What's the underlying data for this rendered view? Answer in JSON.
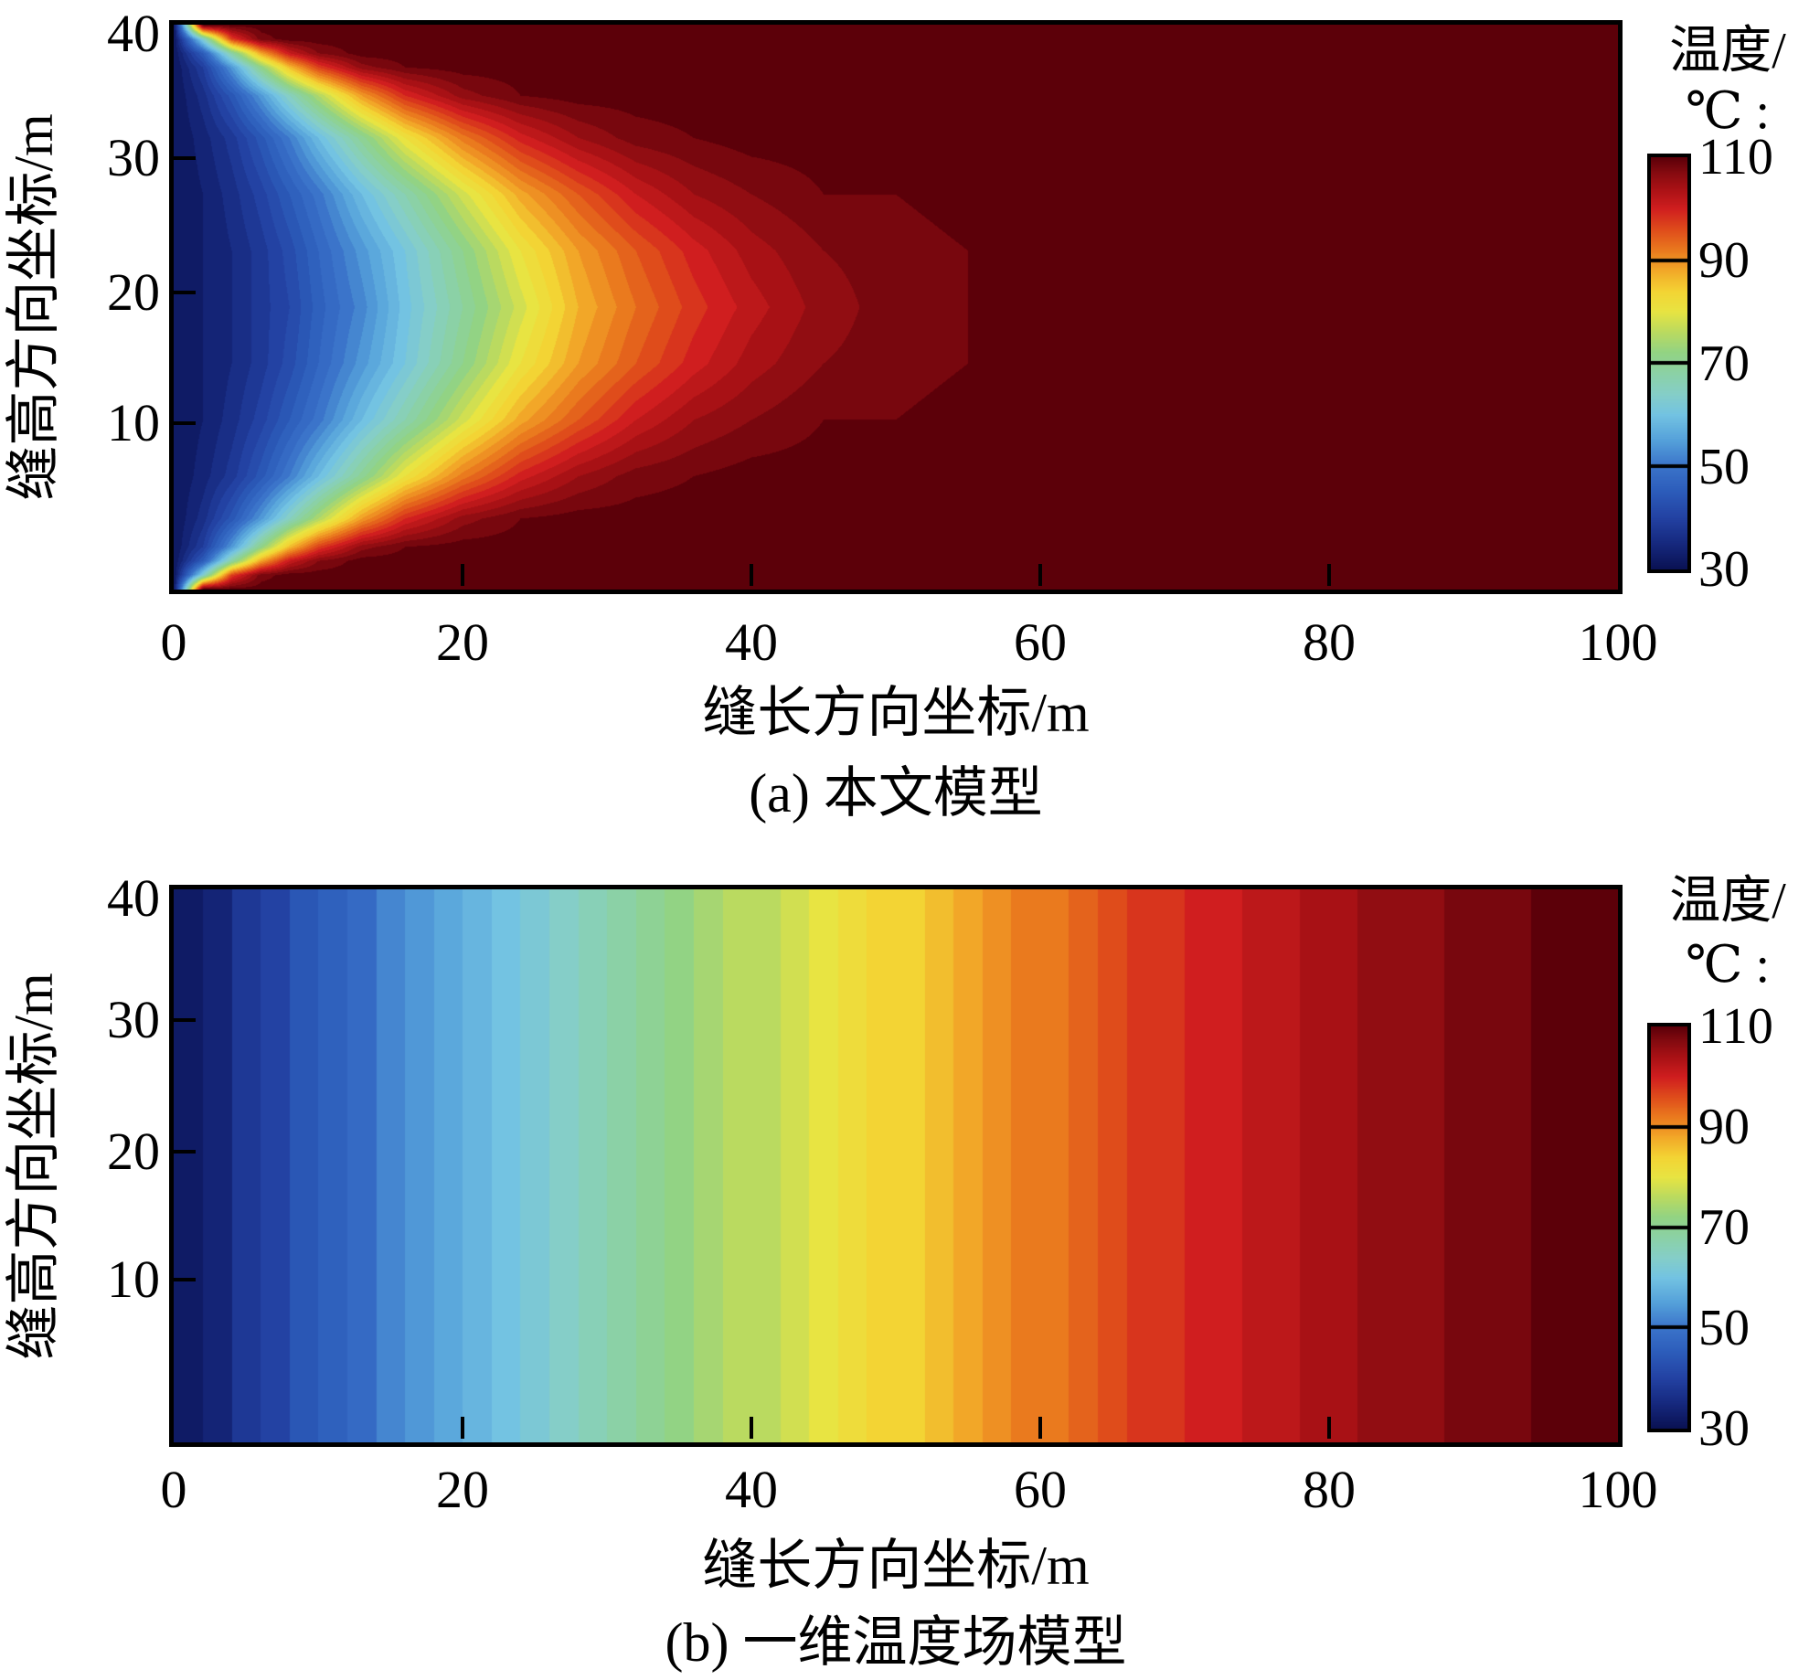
{
  "page": {
    "background": "#ffffff",
    "axis_color": "#000000"
  },
  "colormap": {
    "stops": [
      [
        30,
        "#0a1254"
      ],
      [
        35,
        "#16297f"
      ],
      [
        40,
        "#2342a3"
      ],
      [
        45,
        "#2c5cba"
      ],
      [
        50,
        "#3b74ca"
      ],
      [
        55,
        "#55a1da"
      ],
      [
        60,
        "#73c3e2"
      ],
      [
        64,
        "#85cec8"
      ],
      [
        68,
        "#8bd1a6"
      ],
      [
        72,
        "#92d384"
      ],
      [
        76,
        "#bada60"
      ],
      [
        80,
        "#e8e442"
      ],
      [
        84,
        "#f3d434"
      ],
      [
        88,
        "#f2a728"
      ],
      [
        92,
        "#ea7a1e"
      ],
      [
        96,
        "#df4c1b"
      ],
      [
        100,
        "#d01e1f"
      ],
      [
        104,
        "#a81115"
      ],
      [
        107,
        "#860b10"
      ],
      [
        110,
        "#5c0009"
      ]
    ]
  },
  "chart_data": [
    {
      "type": "heatmap",
      "panel": "a",
      "title": "(a) 本文模型",
      "xlabel": "缝长方向坐标/m",
      "ylabel": "缝高方向坐标/m",
      "x_ticks": [
        "0",
        "20",
        "40",
        "60",
        "80",
        "100"
      ],
      "y_ticks": [
        "40",
        "30",
        "20",
        "10"
      ],
      "xlim": [
        0,
        100
      ],
      "ylim": [
        0,
        40
      ],
      "zlim": [
        30,
        110
      ],
      "legend_position": "right-colorbar",
      "grid": false,
      "colorbar": {
        "title_line1": "温度/",
        "title_line2": "℃ :",
        "ticks": [
          "110",
          "90",
          "70",
          "50",
          "30"
        ]
      },
      "x": [
        0,
        2,
        4,
        6,
        8,
        10,
        13,
        16,
        20,
        24,
        28,
        32,
        36,
        40,
        45,
        50,
        55,
        60,
        70,
        80,
        90,
        100
      ],
      "y": [
        0,
        1,
        2,
        3,
        5,
        8,
        12,
        16,
        20,
        24,
        28,
        32,
        35,
        37,
        38,
        39,
        40
      ],
      "values": [
        [
          31,
          110,
          110,
          110,
          110,
          110,
          110,
          110,
          110,
          110,
          110,
          110,
          110,
          110,
          110,
          110,
          110,
          110,
          110,
          110,
          110,
          110
        ],
        [
          31,
          63,
          97,
          108,
          110,
          110,
          110,
          110,
          110,
          110,
          110,
          110,
          110,
          110,
          110,
          110,
          110,
          110,
          110,
          110,
          110,
          110
        ],
        [
          31,
          45,
          68,
          88,
          101,
          107,
          110,
          110,
          110,
          110,
          110,
          110,
          110,
          110,
          110,
          110,
          110,
          110,
          110,
          110,
          110,
          110
        ],
        [
          31,
          39,
          54,
          71,
          86,
          97,
          106,
          109,
          110,
          110,
          110,
          110,
          110,
          110,
          110,
          110,
          110,
          110,
          110,
          110,
          110,
          110
        ],
        [
          31,
          36,
          44,
          54,
          65,
          75,
          89,
          99,
          106,
          109,
          110,
          110,
          110,
          110,
          110,
          110,
          110,
          110,
          110,
          110,
          110,
          110
        ],
        [
          31,
          34,
          38,
          44,
          51,
          59,
          70,
          81,
          92,
          100,
          105,
          108,
          109,
          110,
          110,
          110,
          110,
          110,
          110,
          110,
          110,
          110
        ],
        [
          31,
          33,
          36,
          40,
          45,
          50,
          59,
          67,
          78,
          88,
          95,
          101,
          105,
          107,
          109,
          109,
          110,
          110,
          110,
          110,
          110,
          110
        ],
        [
          31,
          33,
          35,
          38,
          42,
          47,
          54,
          61,
          71,
          81,
          89,
          95,
          100,
          104,
          107,
          108,
          109,
          110,
          110,
          110,
          110,
          110
        ],
        [
          31,
          33,
          35,
          38,
          41,
          46,
          52,
          60,
          69,
          78,
          87,
          93,
          98,
          102,
          106,
          108,
          109,
          109,
          110,
          110,
          110,
          110
        ],
        [
          31,
          33,
          35,
          38,
          42,
          47,
          54,
          61,
          71,
          81,
          89,
          95,
          100,
          104,
          107,
          108,
          109,
          110,
          110,
          110,
          110,
          110
        ],
        [
          31,
          33,
          36,
          40,
          45,
          50,
          59,
          67,
          78,
          88,
          95,
          101,
          105,
          107,
          109,
          109,
          110,
          110,
          110,
          110,
          110,
          110
        ],
        [
          31,
          34,
          38,
          44,
          51,
          59,
          70,
          81,
          92,
          100,
          105,
          108,
          109,
          110,
          110,
          110,
          110,
          110,
          110,
          110,
          110,
          110
        ],
        [
          31,
          36,
          44,
          54,
          65,
          75,
          89,
          99,
          106,
          109,
          110,
          110,
          110,
          110,
          110,
          110,
          110,
          110,
          110,
          110,
          110,
          110
        ],
        [
          31,
          39,
          54,
          71,
          86,
          97,
          106,
          109,
          110,
          110,
          110,
          110,
          110,
          110,
          110,
          110,
          110,
          110,
          110,
          110,
          110,
          110
        ],
        [
          31,
          45,
          68,
          88,
          101,
          107,
          110,
          110,
          110,
          110,
          110,
          110,
          110,
          110,
          110,
          110,
          110,
          110,
          110,
          110,
          110,
          110
        ],
        [
          31,
          63,
          97,
          108,
          110,
          110,
          110,
          110,
          110,
          110,
          110,
          110,
          110,
          110,
          110,
          110,
          110,
          110,
          110,
          110,
          110,
          110
        ],
        [
          31,
          110,
          110,
          110,
          110,
          110,
          110,
          110,
          110,
          110,
          110,
          110,
          110,
          110,
          110,
          110,
          110,
          110,
          110,
          110,
          110,
          110
        ]
      ]
    },
    {
      "type": "heatmap",
      "panel": "b",
      "title": "(b) 一维温度场模型",
      "xlabel": "缝长方向坐标/m",
      "ylabel": "缝高方向坐标/m",
      "x_ticks": [
        "0",
        "20",
        "40",
        "60",
        "80",
        "100"
      ],
      "y_ticks": [
        "40",
        "30",
        "20",
        "10"
      ],
      "xlim": [
        0,
        100
      ],
      "ylim": [
        0,
        40
      ],
      "zlim": [
        30,
        110
      ],
      "legend_position": "right-colorbar",
      "grid": false,
      "band": 2,
      "colorbar": {
        "title_line1": "温度/",
        "title_line2": "℃ :",
        "ticks": [
          "110",
          "90",
          "70",
          "50",
          "30"
        ]
      },
      "x": [
        0,
        5,
        10,
        15,
        20,
        25,
        30,
        35,
        40,
        45,
        50,
        55,
        60,
        65,
        70,
        75,
        80,
        85,
        90,
        95,
        100
      ],
      "y": [
        0,
        40
      ],
      "values": [
        [
          30,
          38,
          45,
          51,
          57,
          62,
          67,
          71,
          76,
          80,
          84,
          88,
          92,
          96,
          99,
          102,
          104,
          106,
          108,
          109,
          110
        ]
      ]
    }
  ]
}
